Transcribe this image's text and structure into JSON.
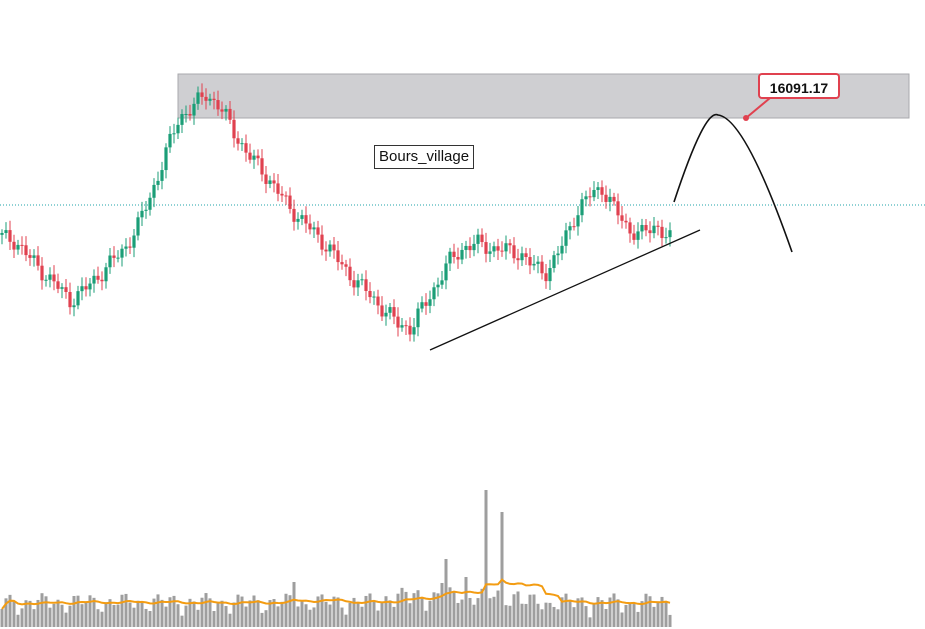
{
  "watermark": "Bours_village",
  "target_price": "16091.17",
  "colors": {
    "up": "#1b9e77",
    "down": "#e0414f",
    "volume": "#9e9e9e",
    "volume_ma": "#f39c12",
    "resistance_zone": "#cfcfd2",
    "current_price_line": "#1fa3a8",
    "drawing": "#111111"
  },
  "chart_data": {
    "type": "candlestick",
    "title": "",
    "xlabel": "",
    "ylabel": "",
    "close_path": [
      14520,
      14480,
      14300,
      14150,
      14000,
      13850,
      13950,
      14100,
      14250,
      14400,
      14650,
      15000,
      15400,
      15800,
      15900,
      16050,
      15900,
      15650,
      15400,
      15250,
      15050,
      14850,
      14700,
      14550,
      14400,
      14200,
      14050,
      13900,
      13750,
      13600,
      13550,
      13800,
      14050,
      14300,
      14420,
      14450,
      14400,
      14380,
      14350,
      14200,
      14150,
      14400,
      14750,
      14950,
      15050,
      14800,
      14600,
      14550,
      14650,
      14500
    ],
    "resistance_zone": {
      "low": 15650,
      "high": 16100
    },
    "current_price": 14620,
    "support_trendline": [
      [
        0.0,
        13520
      ],
      [
        1.0,
        14430
      ]
    ],
    "projection": "arc peaking near 16091.17 then declining"
  }
}
